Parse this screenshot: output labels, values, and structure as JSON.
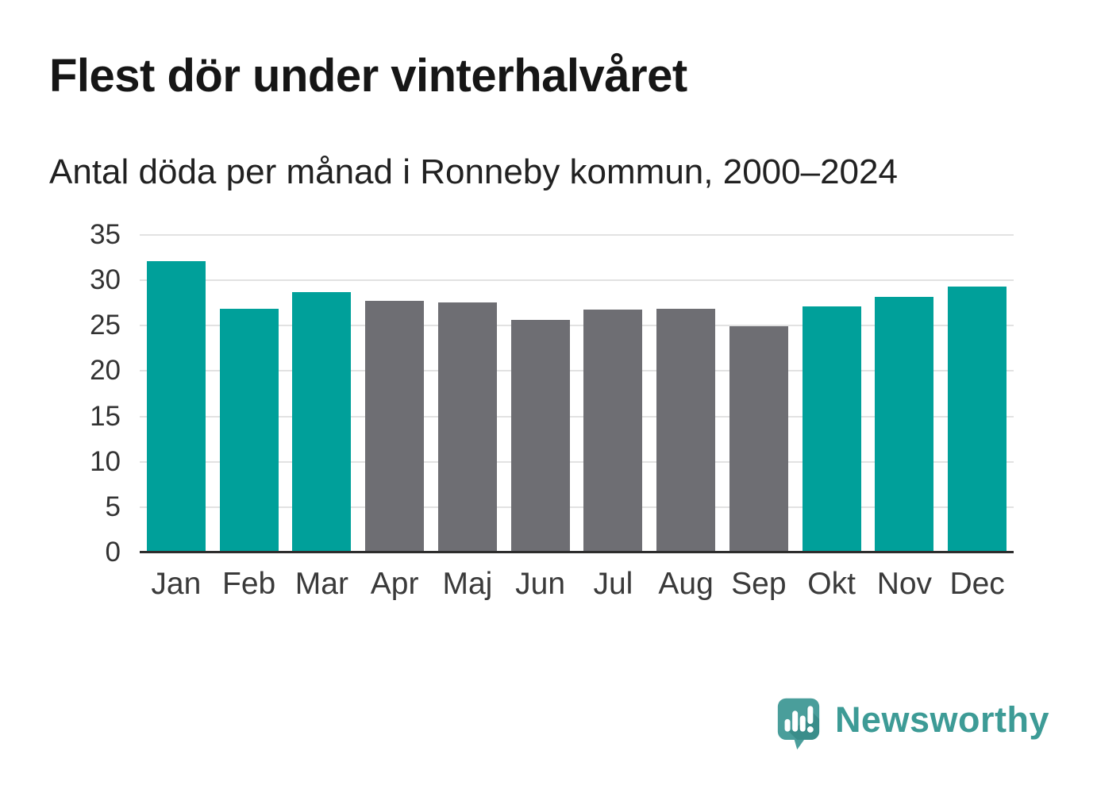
{
  "header": {
    "title": "Flest dör under vinterhalvåret",
    "subtitle": "Antal döda per månad i Ronneby kommun, 2000–2024"
  },
  "chart_data": {
    "type": "bar",
    "title": "Flest dör under vinterhalvåret",
    "subtitle": "Antal döda per månad i Ronneby kommun, 2000–2024",
    "categories": [
      "Jan",
      "Feb",
      "Mar",
      "Apr",
      "Maj",
      "Jun",
      "Jul",
      "Aug",
      "Sep",
      "Okt",
      "Nov",
      "Dec"
    ],
    "values": [
      32.1,
      26.9,
      28.7,
      27.7,
      27.6,
      25.6,
      26.8,
      26.9,
      24.9,
      27.1,
      28.2,
      29.3
    ],
    "bar_color_keys": [
      "teal",
      "teal",
      "teal",
      "gray",
      "gray",
      "gray",
      "gray",
      "gray",
      "gray",
      "teal",
      "teal",
      "teal"
    ],
    "colors": {
      "teal": "#00A09A",
      "gray": "#6E6E73"
    },
    "xlabel": "",
    "ylabel": "",
    "ylim": [
      0,
      35
    ],
    "yticks": [
      0,
      5,
      10,
      15,
      20,
      25,
      30,
      35
    ],
    "grid": true,
    "legend": "none",
    "gridline_color": "#e2e2e2",
    "axis_line_color": "#2d2d2d"
  },
  "footer": {
    "brand": "Newsworthy",
    "logo_icon": "speech-bubble-bar-chart-icon",
    "brand_color": "#3D9B96",
    "logo_bg_color": "#4A9E9B",
    "logo_shadow_color": "#2E7F7B",
    "logo_glyph_color": "#ffffff"
  }
}
